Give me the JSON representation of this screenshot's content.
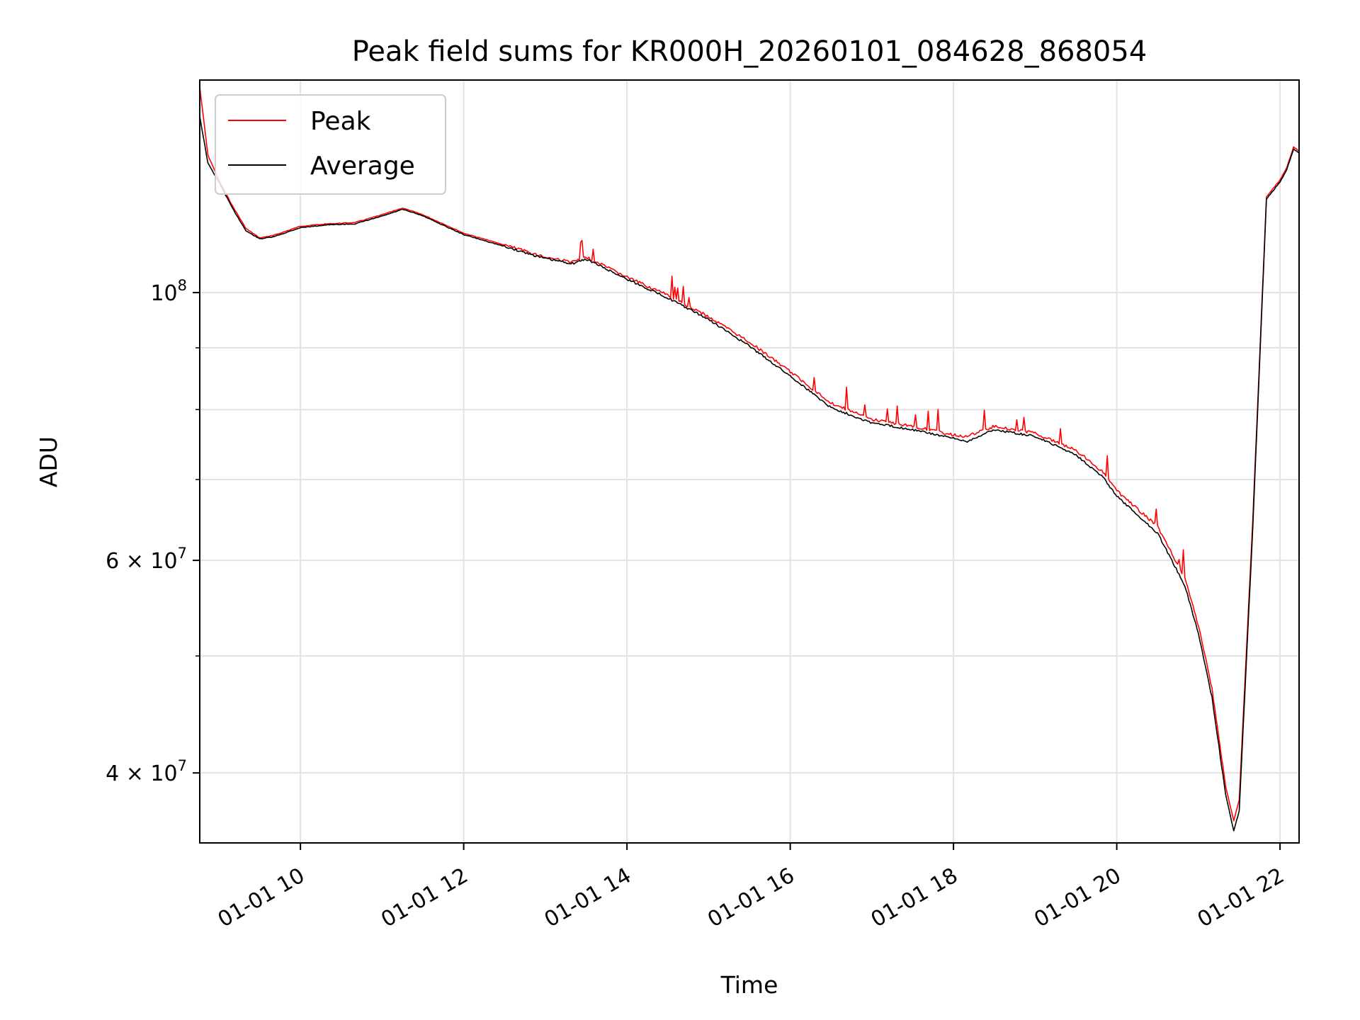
{
  "chart_data": {
    "type": "line",
    "title": "Peak field sums for KR000H_20260101_084628_868054",
    "xlabel": "Time",
    "ylabel": "ADU",
    "x_range": [
      "2026-01-01 08:46",
      "2026-01-01 22:14"
    ],
    "y_scale": "log",
    "ylim": [
      35000000,
      150000000
    ],
    "grid": true,
    "legend_position": "top-left",
    "x_ticks": [
      {
        "value": "2026-01-01 10:00",
        "label": "01-01 10"
      },
      {
        "value": "2026-01-01 12:00",
        "label": "01-01 12"
      },
      {
        "value": "2026-01-01 14:00",
        "label": "01-01 14"
      },
      {
        "value": "2026-01-01 16:00",
        "label": "01-01 16"
      },
      {
        "value": "2026-01-01 18:00",
        "label": "01-01 18"
      },
      {
        "value": "2026-01-01 20:00",
        "label": "01-01 20"
      },
      {
        "value": "2026-01-01 22:00",
        "label": "01-01 22"
      }
    ],
    "y_major_ticks": [
      {
        "value": 40000000,
        "label": "4 × 10",
        "exp": "7"
      },
      {
        "value": 60000000,
        "label": "6 × 10",
        "exp": "7"
      },
      {
        "value": 100000000,
        "label": "10",
        "exp": "8"
      }
    ],
    "y_minor_ticks": [
      50000000,
      70000000,
      80000000,
      90000000
    ],
    "series": [
      {
        "name": "Peak",
        "color": "#ff0000",
        "x": [
          "2026-01-01 08:46",
          "2026-01-01 08:52",
          "2026-01-01 09:00",
          "2026-01-01 09:10",
          "2026-01-01 09:20",
          "2026-01-01 09:30",
          "2026-01-01 09:40",
          "2026-01-01 10:00",
          "2026-01-01 10:20",
          "2026-01-01 10:40",
          "2026-01-01 11:00",
          "2026-01-01 11:15",
          "2026-01-01 11:30",
          "2026-01-01 11:45",
          "2026-01-01 12:00",
          "2026-01-01 12:30",
          "2026-01-01 13:00",
          "2026-01-01 13:20",
          "2026-01-01 13:30",
          "2026-01-01 14:00",
          "2026-01-01 14:30",
          "2026-01-01 15:00",
          "2026-01-01 15:30",
          "2026-01-01 16:00",
          "2026-01-01 16:30",
          "2026-01-01 17:00",
          "2026-01-01 17:30",
          "2026-01-01 18:00",
          "2026-01-01 18:10",
          "2026-01-01 18:30",
          "2026-01-01 19:00",
          "2026-01-01 19:30",
          "2026-01-01 19:50",
          "2026-01-01 20:00",
          "2026-01-01 20:30",
          "2026-01-01 20:50",
          "2026-01-01 21:00",
          "2026-01-01 21:10",
          "2026-01-01 21:20",
          "2026-01-01 21:26",
          "2026-01-01 21:30",
          "2026-01-01 21:40",
          "2026-01-01 21:50",
          "2026-01-01 22:00",
          "2026-01-01 22:05",
          "2026-01-01 22:10",
          "2026-01-01 22:14"
        ],
        "values": [
          148000000,
          130000000,
          124000000,
          118000000,
          113000000,
          111000000,
          111500000,
          113500000,
          114000000,
          114300000,
          116000000,
          117500000,
          116000000,
          114000000,
          112000000,
          109500000,
          107000000,
          106000000,
          107000000,
          103000000,
          99500000,
          95500000,
          91000000,
          86000000,
          81000000,
          78500000,
          77500000,
          76200000,
          76000000,
          77500000,
          76500000,
          74000000,
          71000000,
          68500000,
          64000000,
          58000000,
          53000000,
          47000000,
          39000000,
          36500000,
          38000000,
          65000000,
          120000000,
          124000000,
          127000000,
          132000000,
          131000000
        ]
      },
      {
        "name": "Average",
        "color": "#000000",
        "x": [
          "2026-01-01 08:46",
          "2026-01-01 08:52",
          "2026-01-01 09:00",
          "2026-01-01 09:10",
          "2026-01-01 09:20",
          "2026-01-01 09:30",
          "2026-01-01 09:40",
          "2026-01-01 10:00",
          "2026-01-01 10:20",
          "2026-01-01 10:40",
          "2026-01-01 11:00",
          "2026-01-01 11:15",
          "2026-01-01 11:30",
          "2026-01-01 11:45",
          "2026-01-01 12:00",
          "2026-01-01 12:30",
          "2026-01-01 13:00",
          "2026-01-01 13:20",
          "2026-01-01 13:30",
          "2026-01-01 14:00",
          "2026-01-01 14:30",
          "2026-01-01 15:00",
          "2026-01-01 15:30",
          "2026-01-01 16:00",
          "2026-01-01 16:30",
          "2026-01-01 17:00",
          "2026-01-01 17:30",
          "2026-01-01 18:00",
          "2026-01-01 18:10",
          "2026-01-01 18:30",
          "2026-01-01 19:00",
          "2026-01-01 19:30",
          "2026-01-01 19:50",
          "2026-01-01 20:00",
          "2026-01-01 20:30",
          "2026-01-01 20:50",
          "2026-01-01 21:00",
          "2026-01-01 21:10",
          "2026-01-01 21:20",
          "2026-01-01 21:26",
          "2026-01-01 21:30",
          "2026-01-01 21:40",
          "2026-01-01 21:50",
          "2026-01-01 22:00",
          "2026-01-01 22:05",
          "2026-01-01 22:10",
          "2026-01-01 22:14"
        ],
        "values": [
          140000000,
          128000000,
          123500000,
          117500000,
          112500000,
          110800000,
          111200000,
          113200000,
          113800000,
          114000000,
          115700000,
          117200000,
          115800000,
          113700000,
          111700000,
          109200000,
          106700000,
          105700000,
          106600000,
          102600000,
          99000000,
          95000000,
          90300000,
          85300000,
          80300000,
          78000000,
          77000000,
          75700000,
          75300000,
          77000000,
          76000000,
          73400000,
          70300000,
          67800000,
          63200000,
          57200000,
          52200000,
          46200000,
          38400000,
          35800000,
          37200000,
          64000000,
          119500000,
          123500000,
          126500000,
          131500000,
          130500000
        ]
      }
    ]
  }
}
